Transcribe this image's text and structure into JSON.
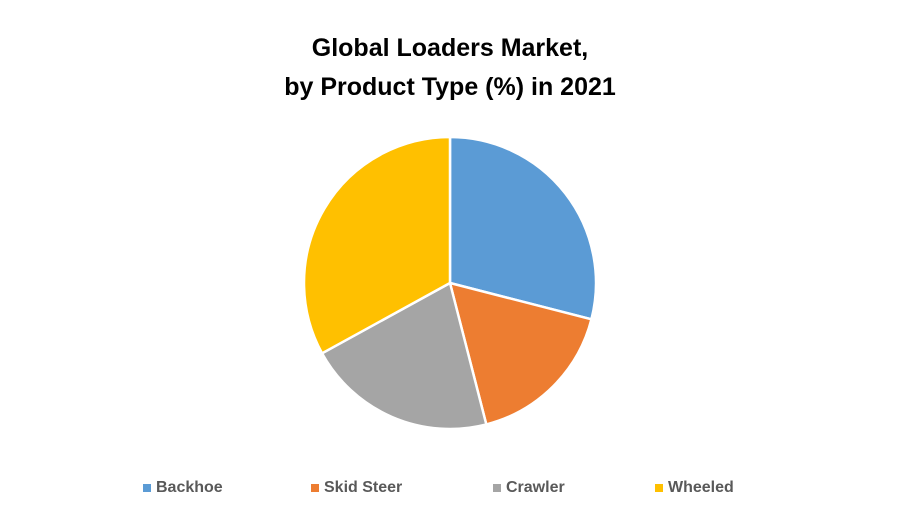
{
  "chart_data": {
    "type": "pie",
    "title": [
      "Global Loaders Market,",
      "by Product Type (%) in 2021"
    ],
    "categories": [
      "Backhoe",
      "Skid Steer",
      "Crawler",
      "Wheeled"
    ],
    "values": [
      29,
      17,
      21,
      33
    ],
    "colors": [
      "#5b9bd5",
      "#ed7d31",
      "#a5a5a5",
      "#ffc000"
    ],
    "legend": "bottom"
  }
}
